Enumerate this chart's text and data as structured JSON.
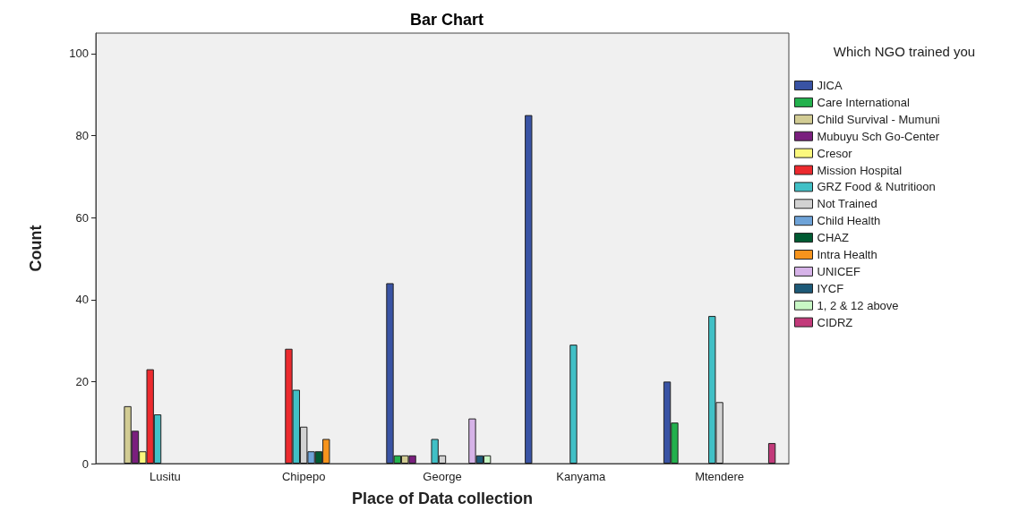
{
  "chart_data": {
    "type": "bar",
    "title": "Bar Chart",
    "xlabel": "Place of Data collection",
    "ylabel": "Count",
    "legend_title": "Which NGO trained you",
    "categories": [
      "Lusitu",
      "Chipepo",
      "George",
      "Kanyama",
      "Mtendere"
    ],
    "series": [
      {
        "name": "JICA",
        "color": "#3953a4",
        "values": [
          null,
          null,
          44,
          85,
          20
        ]
      },
      {
        "name": "Care International",
        "color": "#23b14d",
        "values": [
          null,
          null,
          2,
          null,
          10
        ]
      },
      {
        "name": "Child Survival - Mumuni",
        "color": "#d2cc94",
        "values": [
          14,
          null,
          2,
          null,
          null
        ]
      },
      {
        "name": "Mubuyu Sch Go-Center",
        "color": "#7a1f7e",
        "values": [
          8,
          null,
          2,
          null,
          null
        ]
      },
      {
        "name": "Cresor",
        "color": "#fbf87d",
        "values": [
          3,
          null,
          null,
          null,
          null
        ]
      },
      {
        "name": "Mission Hospital",
        "color": "#ec2a2e",
        "values": [
          23,
          28,
          null,
          null,
          null
        ]
      },
      {
        "name": "GRZ Food & Nutritioon",
        "color": "#41c0c6",
        "values": [
          12,
          18,
          6,
          29,
          36
        ]
      },
      {
        "name": "Not Trained",
        "color": "#d2d2d2",
        "values": [
          null,
          9,
          2,
          null,
          15
        ]
      },
      {
        "name": "Child Health",
        "color": "#6ea3d8",
        "values": [
          null,
          3,
          null,
          null,
          null
        ]
      },
      {
        "name": "CHAZ",
        "color": "#005a32",
        "values": [
          null,
          3,
          null,
          null,
          null
        ]
      },
      {
        "name": "Intra Health",
        "color": "#f7941d",
        "values": [
          null,
          6,
          null,
          null,
          null
        ]
      },
      {
        "name": "UNICEF",
        "color": "#d6b3e8",
        "values": [
          null,
          null,
          11,
          null,
          null
        ]
      },
      {
        "name": "IYCF",
        "color": "#1d5a78",
        "values": [
          null,
          null,
          2,
          null,
          null
        ]
      },
      {
        "name": "1, 2 & 12 above",
        "color": "#c8f7c5",
        "values": [
          null,
          null,
          2,
          null,
          null
        ]
      },
      {
        "name": "CIDRZ",
        "color": "#c23a7a",
        "values": [
          null,
          null,
          null,
          null,
          5
        ]
      }
    ],
    "ylim": [
      0,
      105
    ],
    "yticks": [
      0,
      20,
      40,
      60,
      80,
      100
    ],
    "grid": false,
    "legend": "right"
  }
}
